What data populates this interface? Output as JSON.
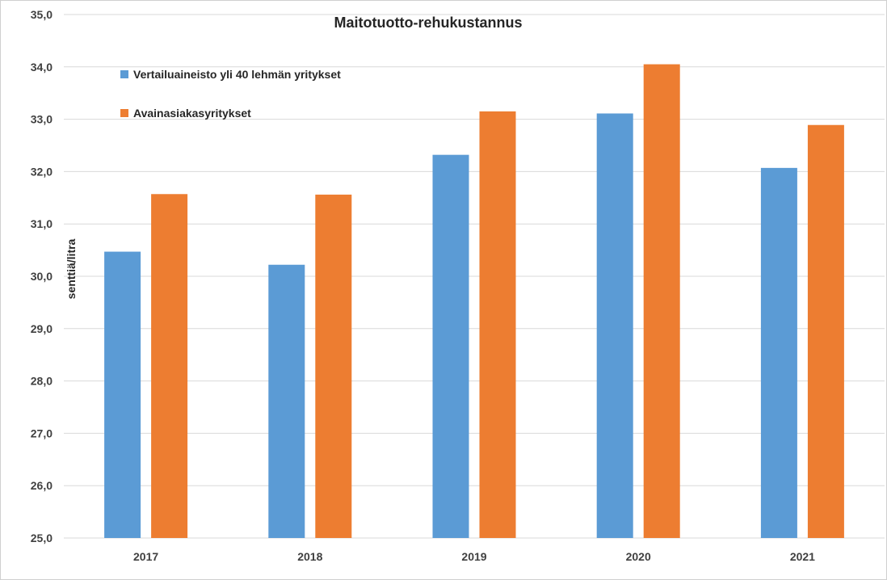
{
  "chart_data": {
    "type": "bar",
    "title": "Maitotuotto-rehukustannus",
    "ylabel": "senttiä/litra",
    "xlabel": "",
    "ylim": [
      25.0,
      35.0
    ],
    "yticks": [
      "25,0",
      "26,0",
      "27,0",
      "28,0",
      "29,0",
      "30,0",
      "31,0",
      "32,0",
      "33,0",
      "34,0",
      "35,0"
    ],
    "grid": true,
    "legend_position": "top-left",
    "categories": [
      "2017",
      "2018",
      "2019",
      "2020",
      "2021"
    ],
    "series": [
      {
        "name": "Vertailuaineisto yli 40 lehmän yritykset",
        "color": "#5b9bd5",
        "values": [
          30.47,
          30.22,
          32.32,
          33.11,
          32.07
        ]
      },
      {
        "name": "Avainasiakasyritykset",
        "color": "#ed7d31",
        "values": [
          31.57,
          31.56,
          33.15,
          34.05,
          32.89
        ]
      }
    ]
  }
}
